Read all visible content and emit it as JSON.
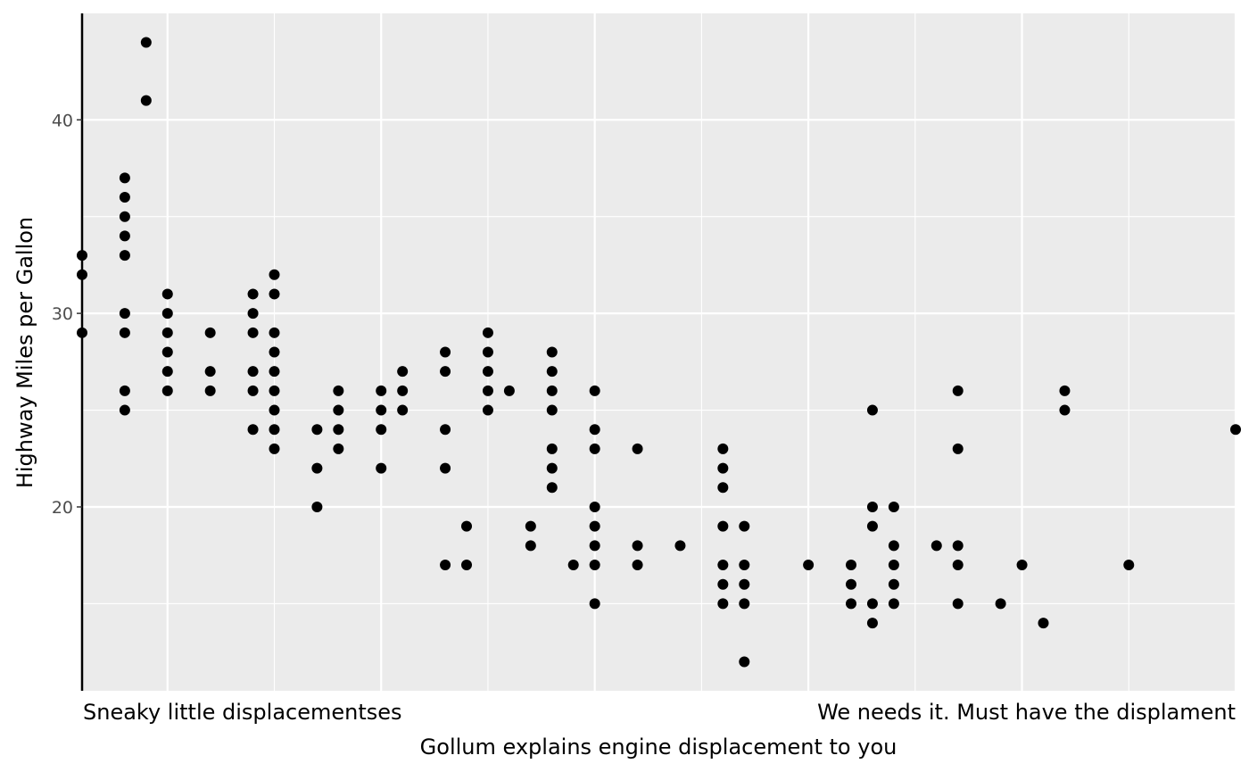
{
  "chart_data": {
    "type": "scatter",
    "title": "",
    "xlabel": "Gollum explains engine displacement to you",
    "ylabel": "Highway Miles per Gallon",
    "xlim": [
      1.6,
      7.0
    ],
    "ylim": [
      10.5,
      45.5
    ],
    "x_major_gridlines": [
      2,
      3,
      4,
      5,
      6,
      7
    ],
    "x_minor_gridlines": [
      1.5,
      2.5,
      3.5,
      4.5,
      5.5,
      6.5
    ],
    "y_ticks": [
      20,
      30,
      40
    ],
    "y_minor_gridlines": [
      15,
      25,
      35
    ],
    "x_annotations": [
      {
        "text": "Sneaky little displacementses",
        "anchor": "left"
      },
      {
        "text": "We needs it. Must have the displament",
        "anchor": "right"
      }
    ],
    "grid": true,
    "legend": "none",
    "background": "#EBEBEB",
    "point_color": "#000000",
    "points": [
      [
        1.6,
        33
      ],
      [
        1.6,
        32
      ],
      [
        1.6,
        29
      ],
      [
        1.8,
        37
      ],
      [
        1.8,
        36
      ],
      [
        1.8,
        35
      ],
      [
        1.8,
        34
      ],
      [
        1.8,
        33
      ],
      [
        1.8,
        30
      ],
      [
        1.8,
        29
      ],
      [
        1.8,
        26
      ],
      [
        1.8,
        25
      ],
      [
        1.9,
        44
      ],
      [
        1.9,
        41
      ],
      [
        2.0,
        31
      ],
      [
        2.0,
        30
      ],
      [
        2.0,
        29
      ],
      [
        2.0,
        28
      ],
      [
        2.0,
        27
      ],
      [
        2.0,
        26
      ],
      [
        2.2,
        29
      ],
      [
        2.2,
        27
      ],
      [
        2.2,
        26
      ],
      [
        2.4,
        31
      ],
      [
        2.4,
        30
      ],
      [
        2.4,
        29
      ],
      [
        2.4,
        27
      ],
      [
        2.4,
        26
      ],
      [
        2.4,
        24
      ],
      [
        2.5,
        32
      ],
      [
        2.5,
        31
      ],
      [
        2.5,
        29
      ],
      [
        2.5,
        28
      ],
      [
        2.5,
        27
      ],
      [
        2.5,
        26
      ],
      [
        2.5,
        25
      ],
      [
        2.5,
        24
      ],
      [
        2.5,
        23
      ],
      [
        2.7,
        24
      ],
      [
        2.7,
        22
      ],
      [
        2.7,
        20
      ],
      [
        2.8,
        26
      ],
      [
        2.8,
        25
      ],
      [
        2.8,
        24
      ],
      [
        2.8,
        23
      ],
      [
        3.0,
        26
      ],
      [
        3.0,
        25
      ],
      [
        3.0,
        24
      ],
      [
        3.0,
        22
      ],
      [
        3.1,
        27
      ],
      [
        3.1,
        26
      ],
      [
        3.1,
        25
      ],
      [
        3.3,
        28
      ],
      [
        3.3,
        27
      ],
      [
        3.3,
        24
      ],
      [
        3.3,
        22
      ],
      [
        3.3,
        17
      ],
      [
        3.4,
        19
      ],
      [
        3.4,
        17
      ],
      [
        3.5,
        29
      ],
      [
        3.5,
        28
      ],
      [
        3.5,
        27
      ],
      [
        3.5,
        26
      ],
      [
        3.5,
        25
      ],
      [
        3.6,
        26
      ],
      [
        3.7,
        19
      ],
      [
        3.7,
        18
      ],
      [
        3.8,
        28
      ],
      [
        3.8,
        27
      ],
      [
        3.8,
        26
      ],
      [
        3.8,
        25
      ],
      [
        3.8,
        23
      ],
      [
        3.8,
        22
      ],
      [
        3.8,
        21
      ],
      [
        3.9,
        17
      ],
      [
        4.0,
        26
      ],
      [
        4.0,
        24
      ],
      [
        4.0,
        23
      ],
      [
        4.0,
        20
      ],
      [
        4.0,
        19
      ],
      [
        4.0,
        18
      ],
      [
        4.0,
        17
      ],
      [
        4.0,
        15
      ],
      [
        4.2,
        23
      ],
      [
        4.2,
        18
      ],
      [
        4.2,
        17
      ],
      [
        4.4,
        18
      ],
      [
        4.6,
        23
      ],
      [
        4.6,
        22
      ],
      [
        4.6,
        21
      ],
      [
        4.6,
        19
      ],
      [
        4.6,
        17
      ],
      [
        4.6,
        16
      ],
      [
        4.6,
        15
      ],
      [
        4.7,
        19
      ],
      [
        4.7,
        17
      ],
      [
        4.7,
        16
      ],
      [
        4.7,
        15
      ],
      [
        4.7,
        12
      ],
      [
        5.0,
        17
      ],
      [
        5.2,
        17
      ],
      [
        5.2,
        16
      ],
      [
        5.2,
        15
      ],
      [
        5.3,
        25
      ],
      [
        5.3,
        20
      ],
      [
        5.3,
        19
      ],
      [
        5.3,
        15
      ],
      [
        5.3,
        14
      ],
      [
        5.4,
        20
      ],
      [
        5.4,
        18
      ],
      [
        5.4,
        17
      ],
      [
        5.4,
        16
      ],
      [
        5.4,
        15
      ],
      [
        5.6,
        18
      ],
      [
        5.7,
        26
      ],
      [
        5.7,
        23
      ],
      [
        5.7,
        18
      ],
      [
        5.7,
        17
      ],
      [
        5.7,
        15
      ],
      [
        5.9,
        15
      ],
      [
        6.0,
        17
      ],
      [
        6.1,
        14
      ],
      [
        6.2,
        26
      ],
      [
        6.2,
        25
      ],
      [
        6.5,
        17
      ],
      [
        7.0,
        24
      ]
    ]
  }
}
